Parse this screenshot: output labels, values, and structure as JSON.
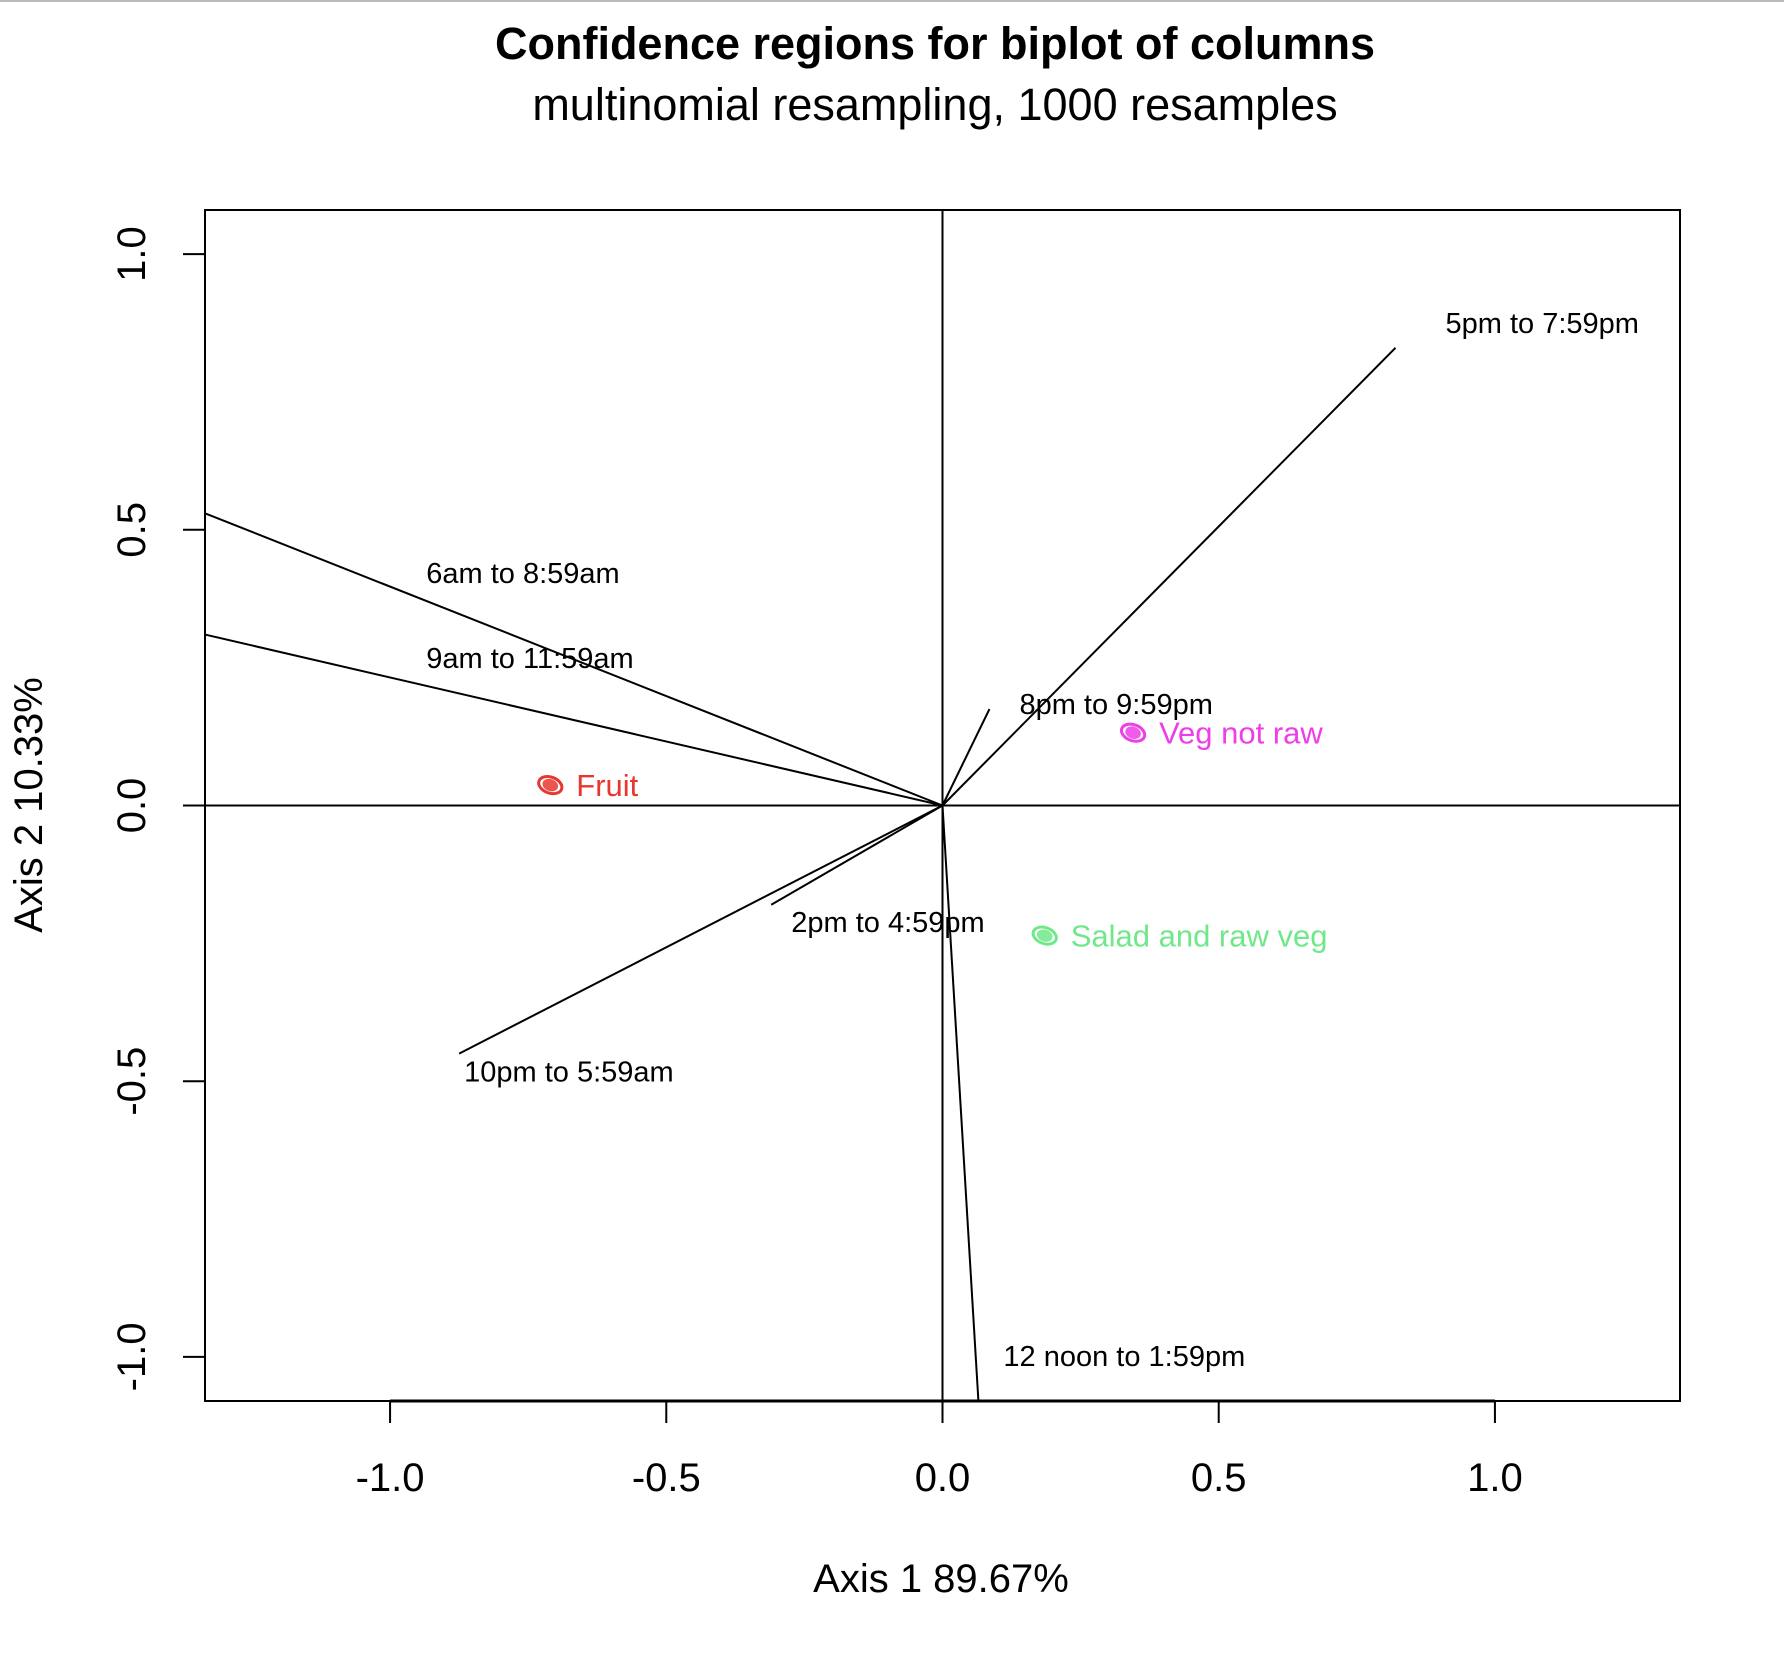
{
  "chart_data": {
    "type": "scatter",
    "title": "Confidence regions for biplot of columns",
    "subtitle": "multinomial resampling,  1000 resamples",
    "xlabel": "Axis 1    89.67%",
    "ylabel": "Axis 2    10.33%",
    "xlim": [
      -1.335,
      1.335
    ],
    "ylim": [
      -1.08,
      1.08
    ],
    "x_ticks": [
      -1.0,
      -0.5,
      0.0,
      0.5,
      1.0
    ],
    "x_tick_labels": [
      "-1.0",
      "-0.5",
      "0.0",
      "0.5",
      "1.0"
    ],
    "y_ticks": [
      -1.0,
      -0.5,
      0.0,
      0.5,
      1.0
    ],
    "y_tick_labels": [
      "-1.0",
      "-0.5",
      "0.0",
      "0.5",
      "1.0"
    ],
    "grid": false,
    "reference_lines": {
      "x": 0,
      "y": 0
    },
    "vectors": [
      {
        "label": "5pm to 7:59pm",
        "x": 0.82,
        "y": 0.83
      },
      {
        "label": "6am to 8:59am",
        "x": -1.335,
        "y": 0.53
      },
      {
        "label": "9am to 11:59am",
        "x": -1.335,
        "y": 0.31
      },
      {
        "label": "8pm to 9:59pm",
        "x": 0.085,
        "y": 0.175
      },
      {
        "label": "2pm to 4:59pm",
        "x": -0.31,
        "y": -0.18
      },
      {
        "label": "10pm to 5:59am",
        "x": -0.875,
        "y": -0.45
      },
      {
        "label": "12 noon to 1:59pm",
        "x": 0.065,
        "y": -1.08
      }
    ],
    "points": [
      {
        "label": "Fruit",
        "x": -0.71,
        "y": 0.037,
        "color": "#e8372f"
      },
      {
        "label": "Veg not raw",
        "x": 0.345,
        "y": 0.132,
        "color": "#ee3ee8"
      },
      {
        "label": "Salad and raw veg",
        "x": 0.185,
        "y": -0.236,
        "color": "#6fe88a"
      }
    ]
  }
}
